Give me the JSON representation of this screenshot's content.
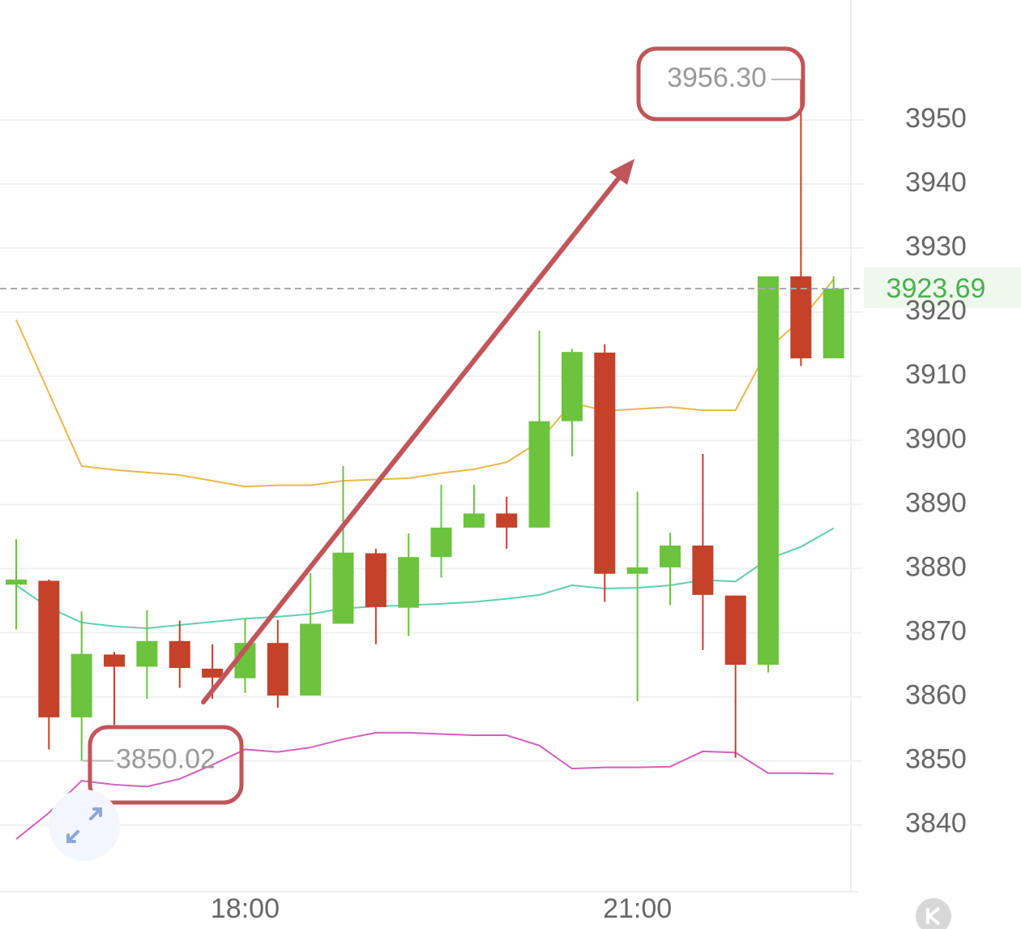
{
  "chart_data": {
    "type": "candlestick",
    "categories": [
      null,
      null,
      null,
      null,
      null,
      null,
      null,
      "18:00",
      null,
      null,
      null,
      null,
      null,
      null,
      null,
      null,
      null,
      null,
      null,
      "21:00",
      null,
      null,
      null,
      null,
      null,
      null
    ],
    "open": [
      3877.5,
      3878.1,
      3856.8,
      3866.6,
      3864.7,
      3868.7,
      3864.4,
      3862.9,
      3868.4,
      3860.2,
      3871.4,
      3882.4,
      3873.9,
      3881.8,
      3886.4,
      3888.6,
      3886.4,
      3903.0,
      3913.7,
      3879.2,
      3880.2,
      3883.6,
      3875.8,
      3865.0,
      3925.6,
      3912.8
    ],
    "high": [
      3884.6,
      3878.3,
      3873.3,
      3867.0,
      3873.5,
      3871.9,
      3868.2,
      3872.2,
      3872.0,
      3879.3,
      3896.0,
      3883.1,
      3885.5,
      3893.1,
      3893.1,
      3891.2,
      3917.1,
      3914.3,
      3915.0,
      3892.0,
      3885.6,
      3897.9,
      3875.8,
      3925.6,
      3956.3,
      3925.6
    ],
    "low": [
      3870.5,
      3851.8,
      3850.02,
      3855.6,
      3859.7,
      3861.4,
      3859.7,
      3860.6,
      3858.3,
      3860.2,
      3871.4,
      3868.2,
      3869.5,
      3878.6,
      3886.4,
      3883.1,
      3886.4,
      3897.5,
      3874.8,
      3859.3,
      3874.3,
      3867.3,
      3850.5,
      3863.8,
      3911.6,
      3912.8
    ],
    "close": [
      3878.3,
      3856.8,
      3866.7,
      3864.7,
      3868.7,
      3864.5,
      3863.0,
      3868.4,
      3860.2,
      3871.4,
      3882.5,
      3874.0,
      3881.8,
      3886.4,
      3888.6,
      3886.4,
      3903.0,
      3913.8,
      3879.2,
      3880.2,
      3883.6,
      3875.9,
      3865.0,
      3925.6,
      3912.8,
      3923.69
    ],
    "up_color": "#6cc33e",
    "down_color": "#c4412a",
    "lines": [
      {
        "color": "#e8b84a",
        "values": [
          3918.8,
          3907.4,
          3896.0,
          3895.4,
          3895.0,
          3894.6,
          3893.7,
          3892.8,
          3893.0,
          3893.0,
          3893.7,
          3893.9,
          3894.1,
          3894.9,
          3895.5,
          3896.6,
          3899.8,
          3905.9,
          3904.6,
          3904.9,
          3905.2,
          3904.7,
          3904.7,
          3914.3,
          3918.8,
          3925.1
        ]
      },
      {
        "color": "#5fcfb0",
        "values": [
          3877.4,
          3873.9,
          3871.6,
          3871.0,
          3870.7,
          3871.2,
          3871.7,
          3872.2,
          3872.5,
          3872.9,
          3873.8,
          3874.1,
          3874.3,
          3874.5,
          3874.8,
          3875.3,
          3875.9,
          3877.4,
          3876.9,
          3877.0,
          3877.4,
          3878.2,
          3878.0,
          3881.5,
          3883.4,
          3886.3
        ]
      },
      {
        "color": "#d45fbf",
        "values": [
          3837.8,
          3841.9,
          3846.9,
          3846.3,
          3846.0,
          3847.2,
          3849.4,
          3851.8,
          3851.4,
          3852.1,
          3853.4,
          3854.4,
          3854.4,
          3854.2,
          3854.0,
          3854.0,
          3852.4,
          3848.8,
          3849.0,
          3849.0,
          3849.1,
          3851.5,
          3851.3,
          3848.1,
          3848.1,
          3848.0
        ]
      }
    ],
    "ylim": [
      3829.6,
      3968.7
    ],
    "yticks": [
      3840,
      3850,
      3860,
      3870,
      3880,
      3890,
      3900,
      3910,
      3920,
      3930,
      3940,
      3950
    ],
    "grid": true,
    "last_price": 3923.69,
    "annotations": [
      {
        "value": 3956.3,
        "label": "3956.30"
      },
      {
        "value": 3850.02,
        "label": "3850.02"
      }
    ]
  }
}
